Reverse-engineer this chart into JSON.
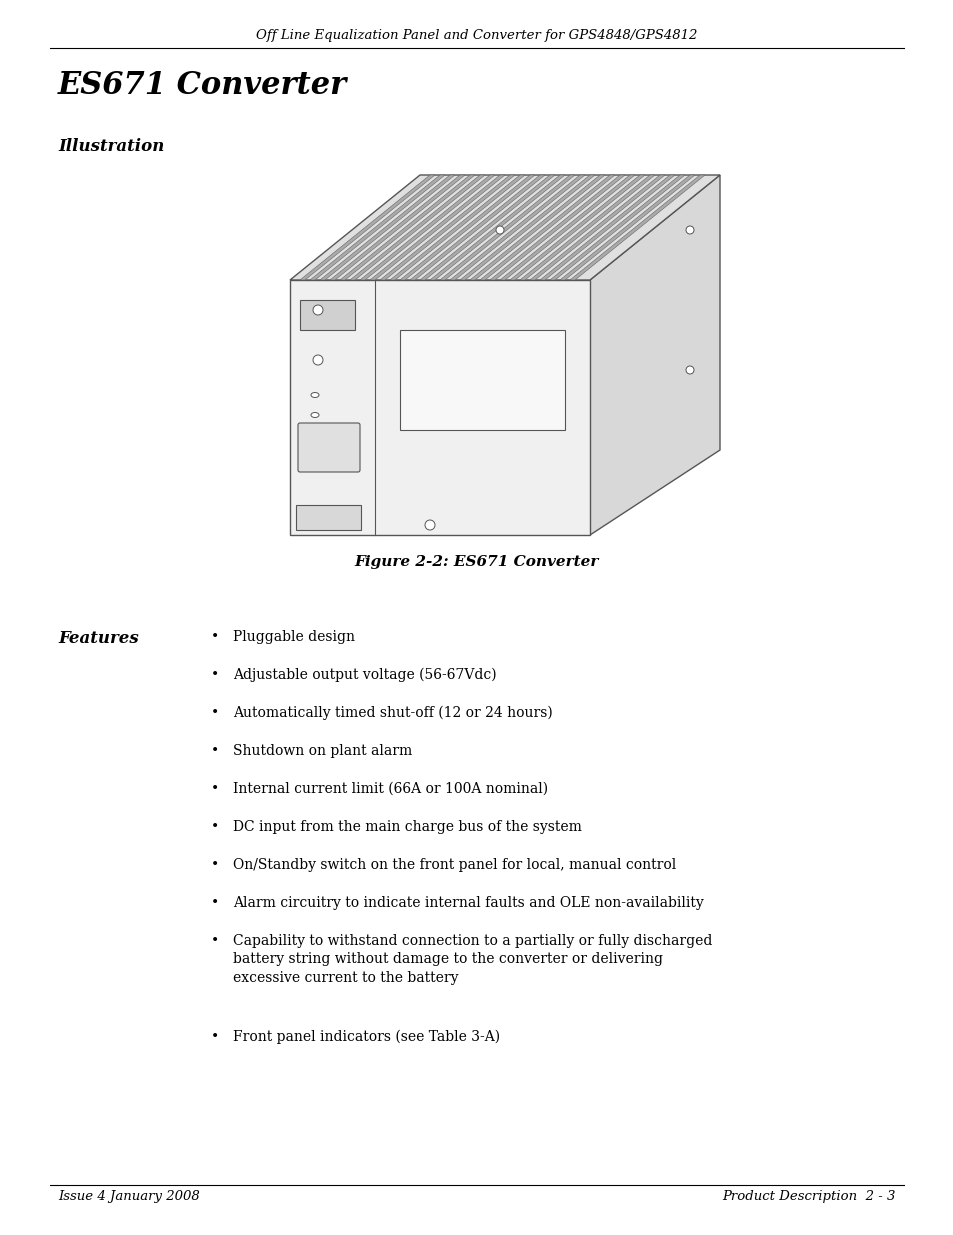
{
  "header_text": "Off Line Equalization Panel and Converter for GPS4848/GPS4812",
  "title": "ES671 Converter",
  "section1_label": "Illustration",
  "figure_caption": "Figure 2-2: ES671 Converter",
  "features_label": "Features",
  "bullet_items": [
    "Pluggable design",
    "Adjustable output voltage (56-67Vdc)",
    "Automatically timed shut-off (12 or 24 hours)",
    "Shutdown on plant alarm",
    "Internal current limit (66A or 100A nominal)",
    "DC input from the main charge bus of the system",
    "On/Standby switch on the front panel for local, manual control",
    "Alarm circuitry to indicate internal faults and OLE non-availability",
    "Capability to withstand connection to a partially or fully discharged\nbattery string without damage to the converter or delivering\nexcessive current to the battery",
    "Front panel indicators (see Table 3-A)"
  ],
  "footer_left": "Issue 4 January 2008",
  "footer_right": "Product Description  2 - 3",
  "bg_color": "#ffffff",
  "text_color": "#000000",
  "edge_color": "#555555",
  "light_gray": "#e8e8e8",
  "mid_gray": "#cccccc",
  "dark_gray": "#aaaaaa"
}
